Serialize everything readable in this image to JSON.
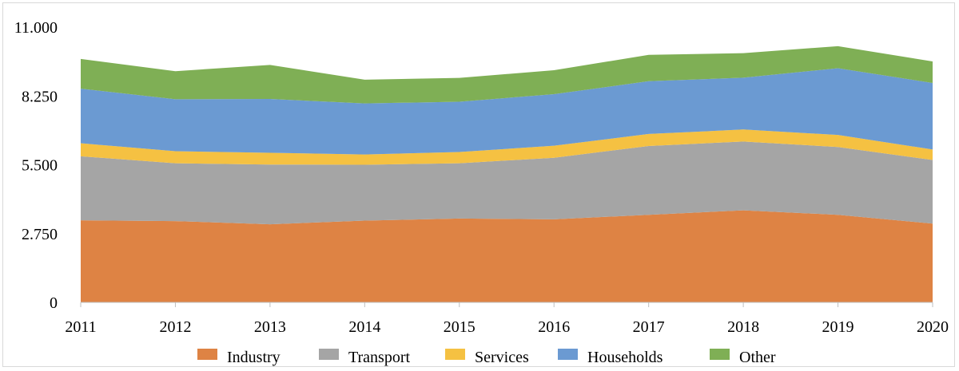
{
  "chart_data": {
    "type": "area",
    "stacked": true,
    "x": [
      "2011",
      "2012",
      "2013",
      "2014",
      "2015",
      "2016",
      "2017",
      "2018",
      "2019",
      "2020"
    ],
    "y_ticks": [
      "0",
      "2.750",
      "5.500",
      "8.250",
      "11.000"
    ],
    "ylim": [
      0,
      11000
    ],
    "grid": false,
    "legend_position": "bottom",
    "series": [
      {
        "name": "Industry",
        "color": "#de8344",
        "values": [
          3280,
          3250,
          3120,
          3270,
          3350,
          3320,
          3500,
          3680,
          3500,
          3150
        ]
      },
      {
        "name": "Transport",
        "color": "#a5a5a5",
        "values": [
          2560,
          2310,
          2390,
          2230,
          2210,
          2460,
          2750,
          2750,
          2710,
          2540
        ]
      },
      {
        "name": "Services",
        "color": "#f5c142",
        "values": [
          520,
          480,
          470,
          410,
          450,
          480,
          480,
          480,
          480,
          420
        ]
      },
      {
        "name": "Households",
        "color": "#6b9ad2",
        "values": [
          2180,
          2080,
          2150,
          2040,
          2010,
          2060,
          2110,
          2070,
          2670,
          2660
        ]
      },
      {
        "name": "Other",
        "color": "#7faf55",
        "values": [
          1190,
          1120,
          1360,
          950,
          950,
          960,
          1050,
          980,
          880,
          860
        ]
      }
    ]
  }
}
